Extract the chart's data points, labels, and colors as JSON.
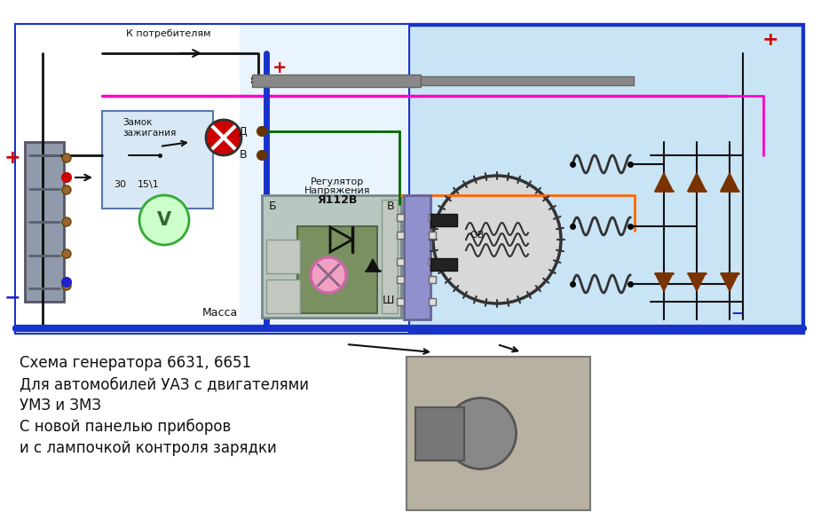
{
  "bg_color": "#ffffff",
  "diagram_bg": "#c8e4f5",
  "caption_lines": [
    "Схема генератора 6631, 6651",
    "Для автомобилей УАЗ с двигателями",
    "УМЗ и ЗМЗ",
    "С новой панелью приборов",
    "и с лампочкой контроля зарядки"
  ],
  "label_consumers": "К потребителям",
  "label_ignition_1": "Замок",
  "label_ignition_2": "зажигания",
  "label_30": "30",
  "label_15": "15\\1",
  "label_massa": "Масса",
  "label_D": "Д",
  "label_B": "В",
  "label_Sh": "Ш",
  "label_B2": "В",
  "label_Bs": "Б",
  "label_OV": "ОВ",
  "label_regulator_1": "Регулятор",
  "label_regulator_2": "Напряжения",
  "label_regulator_3": "Я112В",
  "plus_color": "#cc0000",
  "minus_color": "#2222cc",
  "wire_blue": "#1833cc",
  "wire_green": "#006600",
  "wire_pink": "#ff00cc",
  "wire_orange": "#ff6600",
  "wire_dark_red": "#880000",
  "wire_black": "#111111"
}
